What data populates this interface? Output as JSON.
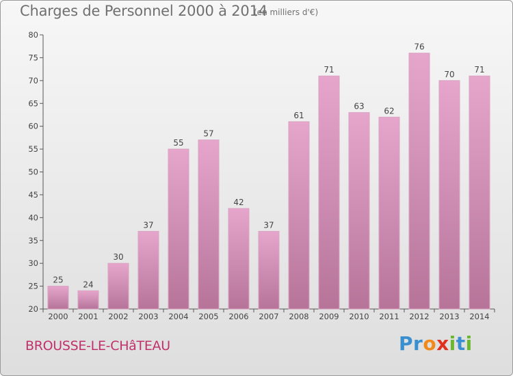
{
  "chart_data": {
    "type": "bar",
    "title": "Charges de Personnel 2000 à 2014",
    "subtitle": "(en milliers d'€)",
    "categories": [
      "2000",
      "2001",
      "2002",
      "2003",
      "2004",
      "2005",
      "2006",
      "2007",
      "2008",
      "2009",
      "2010",
      "2011",
      "2012",
      "2013",
      "2014"
    ],
    "values": [
      25,
      24,
      30,
      37,
      55,
      57,
      42,
      37,
      61,
      71,
      63,
      62,
      76,
      70,
      71
    ],
    "ylim": [
      20,
      80
    ],
    "yticks": [
      20,
      25,
      30,
      35,
      40,
      45,
      50,
      55,
      60,
      65,
      70,
      75,
      80
    ],
    "grid": false,
    "colors": {
      "bar_top": "#e6a6cc",
      "bar_bottom": "#b67499"
    }
  },
  "footer": {
    "commune": "BROUSSE-LE-CHâTEAU",
    "logo_letters": [
      {
        "ch": "P",
        "color": "#3a8fd0"
      },
      {
        "ch": "r",
        "color": "#3a8fd0"
      },
      {
        "ch": "o",
        "color": "#f08a1c"
      },
      {
        "ch": "x",
        "color": "#e0301e"
      },
      {
        "ch": "i",
        "color": "#6ab82e"
      },
      {
        "ch": "t",
        "color": "#3a8fd0"
      },
      {
        "ch": "i",
        "color": "#6ab82e"
      }
    ]
  }
}
